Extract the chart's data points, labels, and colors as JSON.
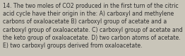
{
  "lines": [
    "14. The two moles of CO2 produced in the first turn of the citric",
    "acid cycle have their origin in the: A) carboxyl and methylene",
    "carbons of oxaloacetate B) carboxyl group of acetate and a",
    "carboxyl group of oxaloacetate. C) carboxyl group of acetate and",
    "the keto group of oxaloacetate. D) two carbon atoms of acetate.",
    "E) two carboxyl groups derived from oxaloacetate."
  ],
  "font_size": 5.6,
  "text_color": "#2e2e2e",
  "background_color": "#c9c5b9",
  "font_family": "DejaVu Sans"
}
